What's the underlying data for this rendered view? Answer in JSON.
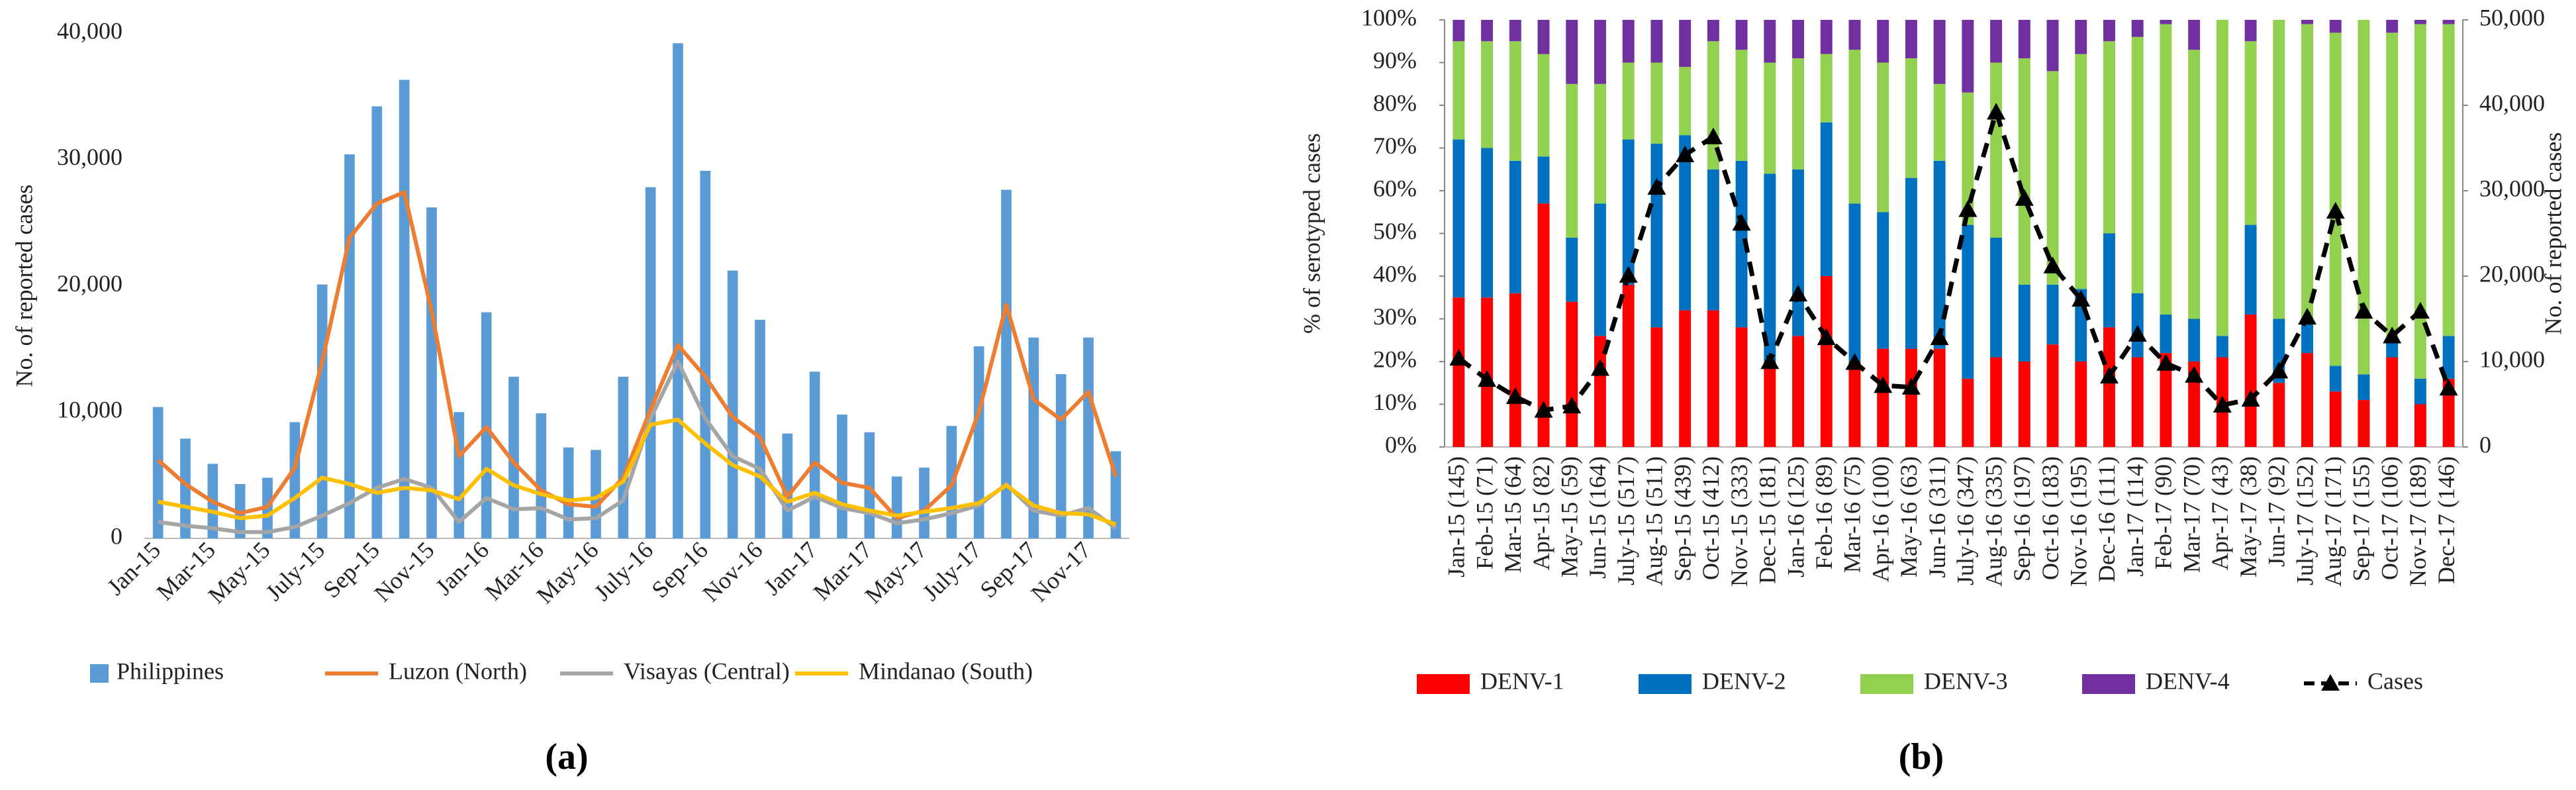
{
  "chart_data": [
    {
      "type": "bar_line",
      "categories": [
        "Jan-15",
        null,
        "Mar-15",
        null,
        "May-15",
        null,
        "July-15",
        null,
        "Sep-15",
        null,
        "Nov-15",
        null,
        "Jan-16",
        null,
        "Mar-16",
        null,
        "May-16",
        null,
        "July-16",
        null,
        "Sep-16",
        null,
        "Nov-16",
        null,
        "Jan-17",
        null,
        "Mar-17",
        null,
        "May-17",
        null,
        "July-17",
        null,
        "Sep-17",
        null,
        "Nov-17",
        null
      ],
      "ylabel": "No. of reported cases",
      "ylim": [
        0,
        40000
      ],
      "yticks": [
        0,
        {
          "value": 10000,
          "label": "10,000"
        },
        {
          "value": 20000,
          "label": "20,000"
        },
        {
          "value": 30000,
          "label": "30,000"
        },
        {
          "value": 40000,
          "label": "40,000"
        }
      ],
      "caption": "(a)",
      "legend": "bottom",
      "series": [
        {
          "name": "Philippines",
          "type": "bar",
          "color": "#5b9bd5",
          "values": [
            10400,
            7900,
            5900,
            4300,
            4800,
            9200,
            20100,
            30400,
            34200,
            36300,
            26200,
            10000,
            17900,
            12800,
            9900,
            7200,
            7000,
            12800,
            27800,
            39200,
            29100,
            21200,
            17300,
            8300,
            13200,
            9800,
            8400,
            4900,
            5600,
            8900,
            15200,
            27600,
            15900,
            13000,
            15900,
            6900
          ]
        },
        {
          "name": "Luzon (North)",
          "type": "line",
          "color": "#ed7d31",
          "values": [
            6200,
            4300,
            2900,
            2000,
            2500,
            5600,
            14000,
            23800,
            26500,
            27400,
            18000,
            6500,
            8800,
            6000,
            3800,
            2700,
            2500,
            4800,
            10200,
            15300,
            12800,
            9600,
            8000,
            3300,
            6000,
            4400,
            4000,
            1600,
            2200,
            4200,
            10000,
            18500,
            11000,
            9400,
            11600,
            4900
          ]
        },
        {
          "name": "Visayas (Central)",
          "type": "line",
          "color": "#a5a5a5",
          "values": [
            1300,
            1000,
            800,
            500,
            500,
            900,
            1800,
            2800,
            4000,
            4700,
            4000,
            1300,
            3200,
            2300,
            2400,
            1500,
            1600,
            3000,
            9500,
            14000,
            9500,
            6500,
            5500,
            2200,
            3300,
            2400,
            2000,
            1200,
            1500,
            2000,
            2600,
            4300,
            2200,
            1800,
            2400,
            800
          ]
        },
        {
          "name": "Mindanao (South)",
          "type": "line",
          "color": "#ffc000",
          "values": [
            2900,
            2500,
            2100,
            1600,
            1800,
            3200,
            4800,
            4300,
            3600,
            4000,
            3800,
            3100,
            5500,
            4200,
            3500,
            3000,
            3200,
            4500,
            9000,
            9400,
            7500,
            5800,
            4900,
            2900,
            3600,
            2700,
            2200,
            1800,
            2100,
            2400,
            2800,
            4200,
            2600,
            2000,
            1900,
            1100
          ]
        }
      ]
    },
    {
      "type": "stacked_bar_line",
      "categories": [
        "Jan-15 (145)",
        "Feb-15 (71)",
        "Mar-15 (64)",
        "Apr-15 (82)",
        "May-15 (59)",
        "Jun-15 (164)",
        "July-15 (517)",
        "Aug-15 (511)",
        "Sep-15 (439)",
        "Oct-15 (412)",
        "Nov-15 (333)",
        "Dec-15 (181)",
        "Jan-16 (125)",
        "Feb-16 (89)",
        "Mar-16 (75)",
        "Apr-16 (100)",
        "May-16 (63)",
        "Jun-16 (311)",
        "July-16 (347)",
        "Aug-16 (335)",
        "Sep-16 (197)",
        "Oct-16 (183)",
        "Nov-16 (195)",
        "Dec-16 (111)",
        "Jan-17 (114)",
        "Feb-17 (90)",
        "Mar-17 (70)",
        "Apr-17 (43)",
        "May-17 (38)",
        "Jun-17 (92)",
        "July-17 (152)",
        "Aug-17 (171)",
        "Sep-17 (155)",
        "Oct-17 (106)",
        "Nov-17 (189)",
        "Dec-17 (146)"
      ],
      "ylabel": "% of serotyped cases",
      "y2label": "No. of reported cases",
      "ylim": [
        0,
        100
      ],
      "yticks": [
        {
          "value": 0,
          "label": "0%"
        },
        {
          "value": 10,
          "label": "10%"
        },
        {
          "value": 20,
          "label": "20%"
        },
        {
          "value": 30,
          "label": "30%"
        },
        {
          "value": 40,
          "label": "40%"
        },
        {
          "value": 50,
          "label": "50%"
        },
        {
          "value": 60,
          "label": "60%"
        },
        {
          "value": 70,
          "label": "70%"
        },
        {
          "value": 80,
          "label": "80%"
        },
        {
          "value": 90,
          "label": "90%"
        },
        {
          "value": 100,
          "label": "100%"
        }
      ],
      "y2lim": [
        0,
        50000
      ],
      "y2ticks": [
        0,
        {
          "value": 10000,
          "label": "10,000"
        },
        {
          "value": 20000,
          "label": "20,000"
        },
        {
          "value": 30000,
          "label": "30,000"
        },
        {
          "value": 40000,
          "label": "40,000"
        },
        {
          "value": 50000,
          "label": "50,000"
        }
      ],
      "caption": "(b)",
      "legend": "bottom",
      "series": [
        {
          "name": "DENV-1",
          "type": "bar",
          "color": "#ff0000",
          "values": [
            35,
            35,
            36,
            57,
            34,
            26,
            38,
            28,
            32,
            32,
            28,
            20,
            26,
            40,
            20,
            23,
            23,
            23,
            16,
            21,
            20,
            24,
            20,
            28,
            21,
            22,
            20,
            21,
            31,
            15,
            22,
            13,
            11,
            21,
            10,
            16
          ]
        },
        {
          "name": "DENV-2",
          "type": "bar",
          "color": "#0070c0",
          "values": [
            37,
            35,
            31,
            11,
            15,
            31,
            34,
            43,
            41,
            33,
            39,
            44,
            39,
            36,
            37,
            32,
            40,
            44,
            36,
            28,
            18,
            14,
            17,
            22,
            15,
            9,
            10,
            5,
            21,
            15,
            8,
            6,
            6,
            4,
            6,
            10
          ]
        },
        {
          "name": "DENV-3",
          "type": "bar",
          "color": "#92d050",
          "values": [
            23,
            25,
            28,
            24,
            36,
            28,
            18,
            19,
            16,
            30,
            26,
            26,
            26,
            16,
            36,
            35,
            28,
            18,
            31,
            41,
            53,
            50,
            55,
            45,
            60,
            68,
            63,
            74,
            43,
            70,
            69,
            78,
            83,
            72,
            83,
            73
          ]
        },
        {
          "name": "DENV-4",
          "type": "bar",
          "color": "#7030a0",
          "values": [
            5,
            5,
            5,
            8,
            15,
            15,
            10,
            10,
            11,
            5,
            7,
            10,
            9,
            8,
            7,
            10,
            9,
            15,
            17,
            10,
            9,
            12,
            8,
            5,
            4,
            1,
            7,
            0,
            5,
            0,
            1,
            3,
            0,
            3,
            1,
            1
          ]
        },
        {
          "name": "Cases",
          "type": "line",
          "axis": "y2",
          "color": "#000000",
          "dashed": true,
          "marker": "triangle",
          "values": [
            10400,
            7900,
            5900,
            4300,
            4800,
            9200,
            20100,
            30400,
            34200,
            36300,
            26200,
            10000,
            17900,
            12800,
            9900,
            7200,
            7000,
            12800,
            27800,
            39200,
            29100,
            21200,
            17300,
            8300,
            13200,
            9800,
            8400,
            4900,
            5600,
            8900,
            15200,
            27600,
            15900,
            13000,
            15900,
            6900
          ]
        }
      ]
    }
  ]
}
